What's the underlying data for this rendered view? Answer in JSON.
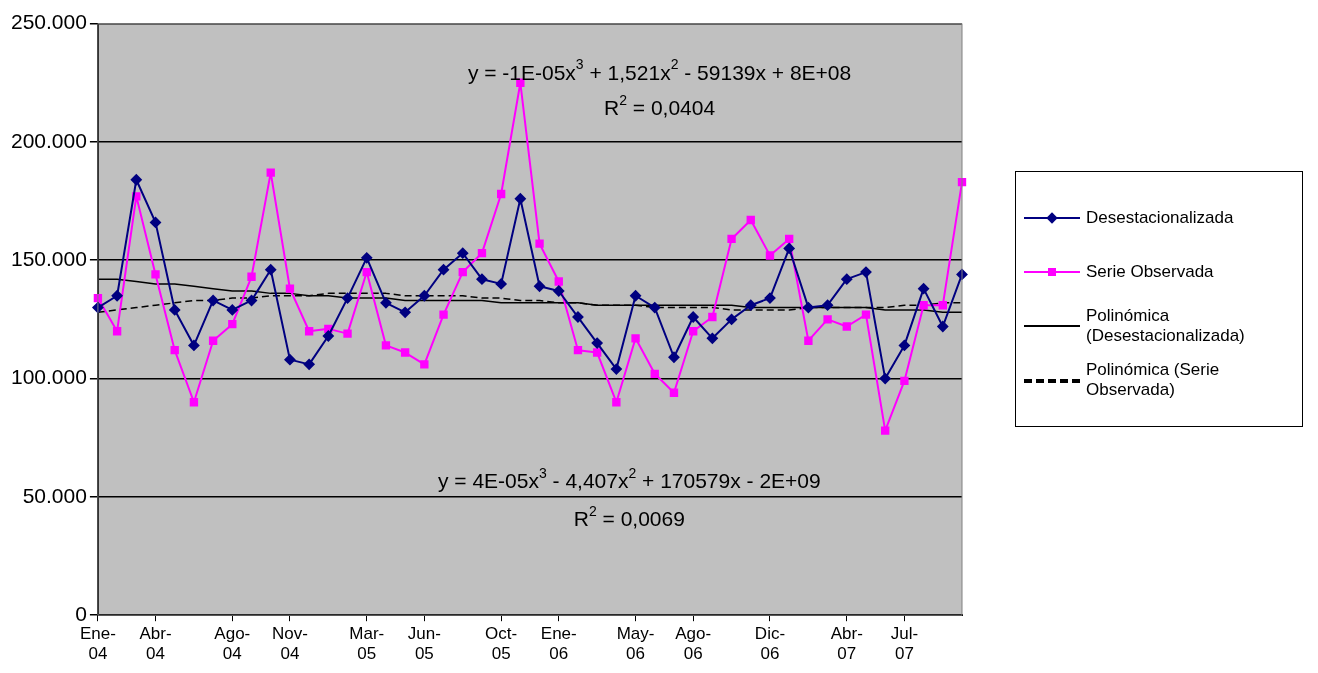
{
  "chart_data": {
    "type": "line",
    "categories": [
      "Ene-04",
      null,
      null,
      "Abr-04",
      null,
      null,
      null,
      "Ago-04",
      null,
      null,
      "Nov-04",
      null,
      null,
      null,
      "Mar-05",
      null,
      null,
      "Jun-05",
      null,
      null,
      null,
      "Oct-05",
      null,
      null,
      "Ene-06",
      null,
      null,
      null,
      "May-06",
      null,
      null,
      "Ago-06",
      null,
      null,
      null,
      "Dic-06",
      null,
      null,
      null,
      "Abr-07",
      null,
      null,
      "Jul-07",
      null,
      null,
      null
    ],
    "series": [
      {
        "name": "Desestacionalizada",
        "color": "#000080",
        "marker": "diamond",
        "line_style": "solid",
        "values": [
          130000,
          135000,
          184000,
          166000,
          129000,
          114000,
          133000,
          129000,
          133000,
          146000,
          108000,
          106000,
          118000,
          134000,
          151000,
          132000,
          128000,
          135000,
          146000,
          153000,
          142000,
          140000,
          176000,
          139000,
          137000,
          126000,
          115000,
          104000,
          135000,
          130000,
          109000,
          126000,
          117000,
          125000,
          131000,
          134000,
          155000,
          130000,
          131000,
          142000,
          145000,
          100000,
          114000,
          138000,
          122000,
          144000
        ]
      },
      {
        "name": "Serie Observada",
        "color": "#ff00ff",
        "marker": "square",
        "line_style": "solid",
        "values": [
          134000,
          120000,
          177000,
          144000,
          112000,
          90000,
          116000,
          123000,
          143000,
          187000,
          138000,
          120000,
          121000,
          119000,
          145000,
          114000,
          111000,
          106000,
          127000,
          145000,
          153000,
          178000,
          225000,
          157000,
          141000,
          112000,
          111000,
          90000,
          117000,
          102000,
          94000,
          120000,
          126000,
          159000,
          167000,
          152000,
          159000,
          116000,
          125000,
          122000,
          127000,
          78000,
          99000,
          131000,
          131000,
          183000
        ]
      },
      {
        "name": "Polinómica (Desestacionalizada)",
        "color": "#000000",
        "marker": "none",
        "line_style": "solid",
        "values": [
          142000,
          142000,
          141000,
          140000,
          140000,
          139000,
          138000,
          137000,
          137000,
          136000,
          136000,
          135000,
          135000,
          134000,
          134000,
          134000,
          133000,
          133000,
          133000,
          133000,
          133000,
          132000,
          132000,
          132000,
          132000,
          132000,
          131000,
          131000,
          131000,
          131000,
          131000,
          131000,
          131000,
          131000,
          130000,
          130000,
          130000,
          130000,
          130000,
          130000,
          130000,
          129000,
          129000,
          129000,
          128000,
          128000
        ]
      },
      {
        "name": "Polinómica (Serie Observada)",
        "color": "#000000",
        "marker": "none",
        "line_style": "dashed",
        "values": [
          128000,
          129000,
          130000,
          131000,
          132000,
          133000,
          133000,
          134000,
          134000,
          135000,
          135000,
          135000,
          136000,
          136000,
          136000,
          136000,
          135000,
          135000,
          135000,
          135000,
          134000,
          134000,
          133000,
          133000,
          132000,
          132000,
          131000,
          131000,
          131000,
          130000,
          130000,
          130000,
          130000,
          129000,
          129000,
          129000,
          129000,
          130000,
          130000,
          130000,
          130000,
          130000,
          131000,
          131000,
          132000,
          132000
        ]
      }
    ],
    "ylim": [
      0,
      250000
    ],
    "yticks": [
      {
        "value": 0,
        "label": "0"
      },
      {
        "value": 50000,
        "label": "50.000"
      },
      {
        "value": 100000,
        "label": "100.000"
      },
      {
        "value": 150000,
        "label": "150.000"
      },
      {
        "value": 200000,
        "label": "200.000"
      },
      {
        "value": 250000,
        "label": "250.000"
      }
    ],
    "grid": "y",
    "legend": "right",
    "annotations": [
      "y = -1E-05x$^{3}$ + 1,521x$^{2}$ - 59139x + 8E+08",
      "R$^{2}$ = 0,0404",
      "y = 4E-05x$^{3}$ - 4,407x$^{2}$ + 170579x - 2E+09",
      "R$^{2}$ = 0,0069"
    ]
  }
}
